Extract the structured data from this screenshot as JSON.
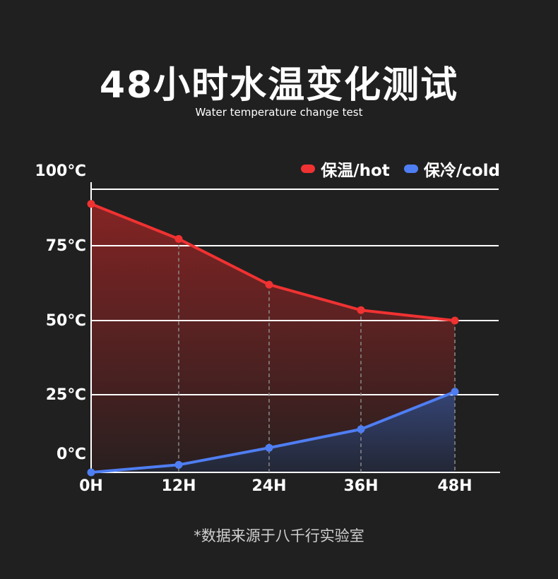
{
  "header": {
    "title": "48小时水温变化测试",
    "subtitle": "Water temperature change test"
  },
  "footnote": "*数据来源于八千行实验室",
  "colors": {
    "background": "#202020",
    "hot": "#f03232",
    "cold": "#4f7ef2",
    "grid": "#ffffff",
    "guide": "#8a8a8a"
  },
  "chart_data": {
    "type": "area",
    "categories": [
      "0H",
      "12H",
      "24H",
      "36H",
      "48H"
    ],
    "y_tick_labels": [
      "100℃",
      "75℃",
      "50℃",
      "25℃",
      "0℃"
    ],
    "grid": true,
    "legend_position": "top-right",
    "series": [
      {
        "name": "保温/hot",
        "color": "#f03232",
        "values": [
          93.5,
          78,
          62,
          53.5,
          50
        ]
      },
      {
        "name": "保冷/cold",
        "color": "#4f7ef2",
        "values": [
          -6,
          -2,
          5,
          12,
          26
        ]
      }
    ]
  }
}
